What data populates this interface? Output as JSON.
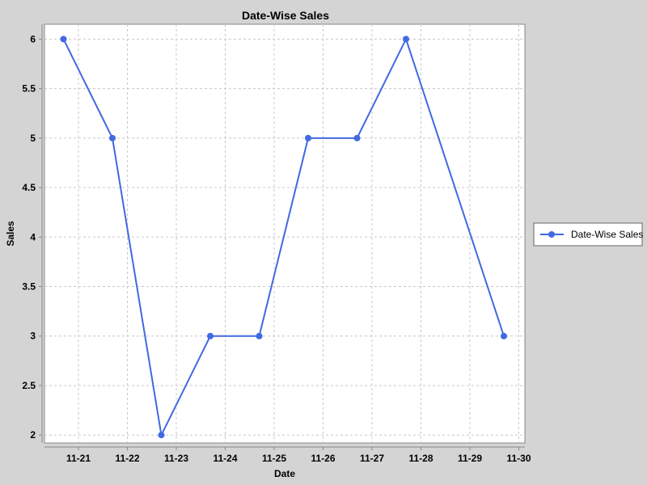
{
  "chart_data": {
    "type": "line",
    "title": "Date-Wise Sales",
    "xlabel": "Date",
    "ylabel": "Sales",
    "x_tick_labels": [
      "11-21",
      "11-22",
      "11-23",
      "11-24",
      "11-25",
      "11-26",
      "11-27",
      "11-28",
      "11-29",
      "11-30"
    ],
    "y_tick_labels": [
      "2",
      "2.5",
      "3",
      "3.5",
      "4",
      "4.5",
      "5",
      "5.5",
      "6"
    ],
    "ylim": [
      1.92,
      6.15
    ],
    "grid": true,
    "legend_position": "right",
    "series": [
      {
        "name": "Date-Wise Sales",
        "color": "#4169e1",
        "points": [
          {
            "x": "11-20",
            "y": 6
          },
          {
            "x": "11-21",
            "y": 5
          },
          {
            "x": "11-22",
            "y": 2
          },
          {
            "x": "11-23",
            "y": 3
          },
          {
            "x": "11-24",
            "y": 3
          },
          {
            "x": "11-25",
            "y": 5
          },
          {
            "x": "11-26",
            "y": 5
          },
          {
            "x": "11-27",
            "y": 6
          },
          {
            "x": "11-29",
            "y": 3
          }
        ]
      }
    ]
  }
}
